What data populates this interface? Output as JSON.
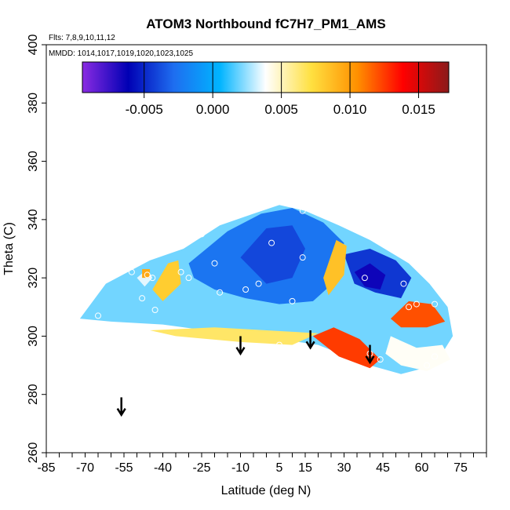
{
  "chart_data": {
    "type": "heatmap",
    "title": "ATOM3 Northbound fC7H7_PM1_AMS",
    "subtitle_flights": "Flts: 7,8,9,10,11,12",
    "subtitle_dates": "MMDD: 1014,1017,1019,1020,1023,1025",
    "xlabel": "Latitude (deg N)",
    "ylabel": "Theta (C)",
    "xlim": [
      -85,
      85
    ],
    "ylim": [
      260,
      400
    ],
    "x_ticks": [
      -85,
      -70,
      -55,
      -40,
      -25,
      -10,
      5,
      15,
      30,
      45,
      60,
      75
    ],
    "y_ticks": [
      260,
      280,
      300,
      320,
      340,
      360,
      380,
      400
    ],
    "colorbar": {
      "min": -0.0095,
      "max": 0.0172,
      "ticks": [
        -0.005,
        0.0,
        0.005,
        0.01,
        0.015
      ],
      "tick_labels": [
        "-0.005",
        "0.000",
        "0.005",
        "0.010",
        "0.015"
      ],
      "colors": [
        "#8a2be2",
        "#0000b4",
        "#1e6ef0",
        "#00b4ff",
        "#ffffff",
        "#ffe040",
        "#ff9000",
        "#ff0000",
        "#8b1a1a"
      ]
    },
    "regions": [
      {
        "value": 0.002,
        "polygon": [
          [
            -72,
            306
          ],
          [
            -62,
            318
          ],
          [
            -45,
            326
          ],
          [
            -32,
            330
          ],
          [
            -18,
            338
          ],
          [
            -5,
            342
          ],
          [
            5,
            345
          ],
          [
            15,
            343
          ],
          [
            28,
            338
          ],
          [
            40,
            333
          ],
          [
            55,
            325
          ],
          [
            63,
            318
          ],
          [
            70,
            310
          ],
          [
            72,
            300
          ],
          [
            65,
            290
          ],
          [
            52,
            287
          ],
          [
            40,
            290
          ],
          [
            20,
            297
          ],
          [
            5,
            299
          ],
          [
            -15,
            301
          ],
          [
            -40,
            304
          ],
          [
            -60,
            305
          ]
        ]
      },
      {
        "value": -0.0025,
        "polygon": [
          [
            -30,
            325
          ],
          [
            -15,
            336
          ],
          [
            -2,
            342
          ],
          [
            10,
            344
          ],
          [
            22,
            339
          ],
          [
            30,
            332
          ],
          [
            28,
            320
          ],
          [
            18,
            312
          ],
          [
            5,
            311
          ],
          [
            -8,
            313
          ],
          [
            -20,
            316
          ],
          [
            -28,
            320
          ]
        ]
      },
      {
        "value": -0.004,
        "polygon": [
          [
            -10,
            327
          ],
          [
            0,
            337
          ],
          [
            10,
            338
          ],
          [
            15,
            330
          ],
          [
            10,
            320
          ],
          [
            0,
            318
          ]
        ]
      },
      {
        "value": -0.0045,
        "polygon": [
          [
            30,
            328
          ],
          [
            40,
            330
          ],
          [
            50,
            326
          ],
          [
            56,
            320
          ],
          [
            52,
            313
          ],
          [
            42,
            315
          ],
          [
            34,
            318
          ]
        ]
      },
      {
        "value": -0.0065,
        "polygon": [
          [
            34,
            322
          ],
          [
            40,
            325
          ],
          [
            46,
            321
          ],
          [
            44,
            316
          ],
          [
            38,
            317
          ]
        ]
      },
      {
        "value": 0.0085,
        "polygon": [
          [
            22,
            320
          ],
          [
            27,
            333
          ],
          [
            31,
            331
          ],
          [
            30,
            321
          ],
          [
            24,
            314
          ]
        ]
      },
      {
        "value": 0.008,
        "polygon": [
          [
            -44,
            316
          ],
          [
            -38,
            325
          ],
          [
            -34,
            326
          ],
          [
            -33,
            318
          ],
          [
            -40,
            312
          ]
        ]
      },
      {
        "value": 0.0065,
        "polygon": [
          [
            -45,
            302
          ],
          [
            -20,
            303
          ],
          [
            0,
            302
          ],
          [
            20,
            301
          ],
          [
            10,
            297
          ],
          [
            -10,
            298
          ],
          [
            -35,
            300
          ]
        ]
      },
      {
        "value": 0.0125,
        "polygon": [
          [
            18,
            300
          ],
          [
            26,
            303
          ],
          [
            36,
            299
          ],
          [
            44,
            292
          ],
          [
            40,
            289
          ],
          [
            28,
            293
          ]
        ]
      },
      {
        "value": 0.012,
        "polygon": [
          [
            48,
            306
          ],
          [
            55,
            312
          ],
          [
            64,
            311
          ],
          [
            69,
            305
          ],
          [
            62,
            303
          ],
          [
            52,
            303
          ]
        ]
      },
      {
        "value": 0.004,
        "polygon": [
          [
            48,
            300
          ],
          [
            58,
            296
          ],
          [
            68,
            297
          ],
          [
            71,
            292
          ],
          [
            62,
            288
          ],
          [
            52,
            290
          ],
          [
            46,
            294
          ]
        ]
      },
      {
        "value": 0.0035,
        "polygon": [
          [
            -50,
            320
          ],
          [
            -46,
            323
          ],
          [
            -44,
            320
          ],
          [
            -47,
            317
          ]
        ]
      },
      {
        "value": 0.0095,
        "polygon": [
          [
            -48,
            323
          ],
          [
            -45,
            323
          ],
          [
            -45,
            320
          ],
          [
            -48,
            320
          ]
        ]
      }
    ],
    "observation_points": [
      [
        -65,
        307
      ],
      [
        -52,
        322
      ],
      [
        -48,
        313
      ],
      [
        -46,
        321
      ],
      [
        -44,
        320
      ],
      [
        -43,
        309
      ],
      [
        -40,
        330
      ],
      [
        -37,
        332
      ],
      [
        -33,
        322
      ],
      [
        -30,
        320
      ],
      [
        -25,
        335
      ],
      [
        -20,
        325
      ],
      [
        -18,
        315
      ],
      [
        -15,
        345
      ],
      [
        -8,
        316
      ],
      [
        -3,
        318
      ],
      [
        2,
        332
      ],
      [
        5,
        297
      ],
      [
        10,
        312
      ],
      [
        14,
        343
      ],
      [
        14,
        327
      ],
      [
        38,
        320
      ],
      [
        40,
        294
      ],
      [
        44,
        292
      ],
      [
        53,
        318
      ],
      [
        58,
        311
      ],
      [
        65,
        311
      ],
      [
        62,
        290
      ],
      [
        65,
        293
      ],
      [
        55,
        310
      ]
    ],
    "arrows": [
      {
        "x": -56,
        "y_top": 279,
        "y_bottom": 273
      },
      {
        "x": -10,
        "y_top": 300,
        "y_bottom": 294
      },
      {
        "x": 17,
        "y_top": 302,
        "y_bottom": 296
      },
      {
        "x": 40,
        "y_top": 297,
        "y_bottom": 291
      }
    ]
  }
}
